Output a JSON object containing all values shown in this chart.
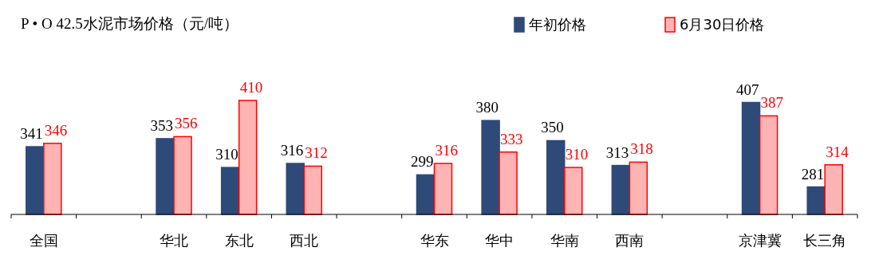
{
  "chart_data": {
    "type": "bar",
    "title": "P • O 42.5水泥市场价格（元/吨）",
    "categories": [
      "全国",
      null,
      "华北",
      "东北",
      "西北",
      null,
      "华东",
      "华中",
      "华南",
      "西南",
      null,
      "京津冀",
      "长三角"
    ],
    "series": [
      {
        "name": "年初价格",
        "color": "#2e4a78",
        "values": [
          341,
          null,
          353,
          310,
          316,
          null,
          299,
          380,
          350,
          313,
          null,
          407,
          281
        ]
      },
      {
        "name": "6月30日价格",
        "color": "#ff0000",
        "values": [
          346,
          null,
          356,
          410,
          312,
          null,
          316,
          333,
          310,
          318,
          null,
          387,
          314
        ]
      }
    ],
    "ylim": [
      240,
      410
    ],
    "data_labels": true,
    "legend": "top right",
    "grid": false
  }
}
